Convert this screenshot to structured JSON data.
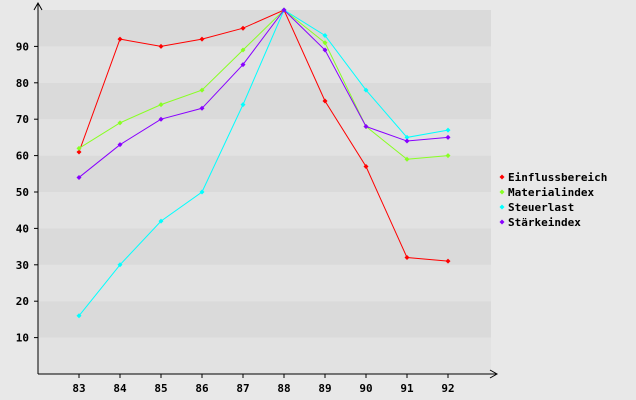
{
  "chart_data": {
    "type": "line",
    "title": "",
    "xlabel": "",
    "ylabel": "",
    "categories": [
      "83",
      "84",
      "85",
      "86",
      "87",
      "88",
      "89",
      "90",
      "91",
      "92"
    ],
    "yticks": [
      10,
      20,
      30,
      40,
      50,
      60,
      70,
      80,
      90
    ],
    "ylim": [
      0,
      100
    ],
    "grid": "horizontal-bands",
    "legend_position": "right",
    "series": [
      {
        "name": "Einflussbereich",
        "color": "#ff0000",
        "values": [
          61,
          92,
          90,
          92,
          95,
          100,
          75,
          57,
          32,
          31
        ]
      },
      {
        "name": "Materialindex",
        "color": "#88ff22",
        "values": [
          62,
          69,
          74,
          78,
          89,
          100,
          91,
          68,
          59,
          60
        ]
      },
      {
        "name": "Steuerlast",
        "color": "#00ffff",
        "values": [
          16,
          30,
          42,
          50,
          74,
          100,
          93,
          78,
          65,
          67
        ]
      },
      {
        "name": "Stärkeindex",
        "color": "#8800ff",
        "values": [
          54,
          63,
          70,
          73,
          85,
          100,
          89,
          68,
          64,
          65
        ]
      }
    ]
  }
}
